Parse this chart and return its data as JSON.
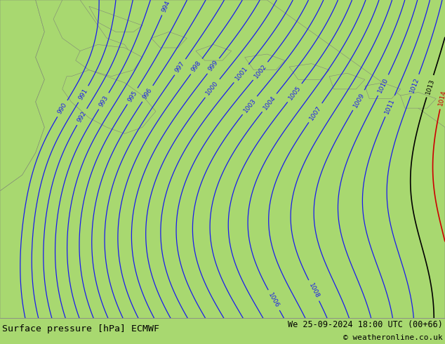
{
  "title_left": "Surface pressure [hPa] ECMWF",
  "title_right": "We 25-09-2024 18:00 UTC (00+66)",
  "copyright": "© weatheronline.co.uk",
  "bg_color": "#a8d870",
  "land_color": "#a8d870",
  "sea_color": "#bcccd8",
  "contour_color_blue": "#1a1aee",
  "contour_color_black": "#000000",
  "contour_color_red": "#cc0000",
  "footer_bg": "#c8e098",
  "text_color": "#000055",
  "figsize": [
    6.34,
    4.9
  ],
  "dpi": 100
}
